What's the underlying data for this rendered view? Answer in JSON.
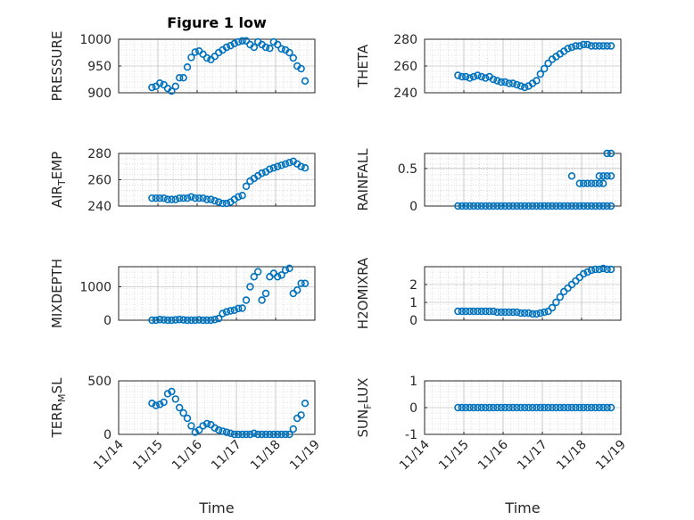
{
  "figure": {
    "title": "Figure 1 low",
    "xlabel": "Time"
  },
  "chart_data": [
    {
      "type": "scatter",
      "title": "Figure 1 low",
      "ylabel": "PRESSURE",
      "ylim": [
        900,
        1000
      ],
      "yticks": [
        "900",
        "950",
        "1000"
      ],
      "ytick_values": [
        900,
        950,
        1000
      ],
      "xlim": [
        14,
        19
      ],
      "xticks": [
        "11/14",
        "11/15",
        "11/16",
        "11/17",
        "11/18",
        "11/19"
      ],
      "show_xticklabels": false,
      "series": [
        {
          "x": [
            14.85,
            14.95,
            15.05,
            15.15,
            15.25,
            15.35,
            15.45,
            15.55,
            15.65,
            15.75,
            15.85,
            15.95,
            16.05,
            16.15,
            16.25,
            16.35,
            16.45,
            16.55,
            16.65,
            16.75,
            16.85,
            16.95,
            17.05,
            17.15,
            17.25,
            17.35,
            17.45,
            17.55,
            17.65,
            17.75,
            17.85,
            17.95,
            18.05,
            18.15,
            18.25,
            18.35,
            18.45,
            18.55,
            18.65,
            18.75
          ],
          "y": [
            910,
            912,
            918,
            915,
            908,
            903,
            912,
            928,
            928,
            948,
            966,
            976,
            978,
            972,
            965,
            962,
            968,
            975,
            980,
            985,
            988,
            992,
            995,
            997,
            997,
            990,
            985,
            995,
            990,
            985,
            983,
            995,
            990,
            982,
            980,
            975,
            965,
            950,
            945,
            922
          ]
        }
      ]
    },
    {
      "type": "scatter",
      "title": "",
      "ylabel": "THETA",
      "ylim": [
        240,
        280
      ],
      "yticks": [
        "240",
        "260",
        "280"
      ],
      "ytick_values": [
        240,
        260,
        280
      ],
      "xlim": [
        14,
        19
      ],
      "xticks": [
        "11/14",
        "11/15",
        "11/16",
        "11/17",
        "11/18",
        "11/19"
      ],
      "show_xticklabels": false,
      "series": [
        {
          "x": [
            14.85,
            14.95,
            15.05,
            15.15,
            15.25,
            15.35,
            15.45,
            15.55,
            15.65,
            15.75,
            15.85,
            15.95,
            16.05,
            16.15,
            16.25,
            16.35,
            16.45,
            16.55,
            16.65,
            16.75,
            16.85,
            16.95,
            17.05,
            17.15,
            17.25,
            17.35,
            17.45,
            17.55,
            17.65,
            17.75,
            17.85,
            17.95,
            18.05,
            18.15,
            18.25,
            18.35,
            18.45,
            18.55,
            18.65,
            18.75
          ],
          "y": [
            253,
            252,
            252,
            251,
            252,
            253,
            252,
            251,
            252,
            250,
            249,
            248,
            248,
            247,
            247,
            246,
            245,
            244,
            245,
            247,
            249,
            254,
            258,
            262,
            265,
            267,
            269,
            271,
            273,
            274,
            275,
            275,
            276,
            276,
            275,
            275,
            275,
            275,
            275,
            275
          ]
        }
      ]
    },
    {
      "type": "scatter",
      "title": "",
      "ylabel": "AIR_TEMP",
      "ylim": [
        240,
        280
      ],
      "yticks": [
        "240",
        "260",
        "280"
      ],
      "ytick_values": [
        240,
        260,
        280
      ],
      "xlim": [
        14,
        19
      ],
      "xticks": [
        "11/14",
        "11/15",
        "11/16",
        "11/17",
        "11/18",
        "11/19"
      ],
      "show_xticklabels": false,
      "series": [
        {
          "x": [
            14.85,
            14.95,
            15.05,
            15.15,
            15.25,
            15.35,
            15.45,
            15.55,
            15.65,
            15.75,
            15.85,
            15.95,
            16.05,
            16.15,
            16.25,
            16.35,
            16.45,
            16.55,
            16.65,
            16.75,
            16.85,
            16.95,
            17.05,
            17.15,
            17.25,
            17.35,
            17.45,
            17.55,
            17.65,
            17.75,
            17.85,
            17.95,
            18.05,
            18.15,
            18.25,
            18.35,
            18.45,
            18.55,
            18.65,
            18.75
          ],
          "y": [
            246,
            246,
            246,
            246,
            245,
            245,
            245,
            246,
            246,
            246,
            247,
            246,
            246,
            246,
            245,
            245,
            244,
            243,
            242,
            242,
            243,
            245,
            247,
            248,
            255,
            259,
            261,
            263,
            265,
            266,
            268,
            269,
            270,
            271,
            272,
            273,
            274,
            272,
            270,
            269
          ]
        }
      ]
    },
    {
      "type": "scatter",
      "title": "",
      "ylabel": "RAINFALL",
      "ylim": [
        0,
        0.7
      ],
      "yticks": [
        "0",
        "0.5"
      ],
      "ytick_values": [
        0,
        0.5
      ],
      "xlim": [
        14,
        19
      ],
      "xticks": [
        "11/14",
        "11/15",
        "11/16",
        "11/17",
        "11/18",
        "11/19"
      ],
      "show_xticklabels": false,
      "series": [
        {
          "x": [
            14.85,
            14.95,
            15.05,
            15.15,
            15.25,
            15.35,
            15.45,
            15.55,
            15.65,
            15.75,
            15.85,
            15.95,
            16.05,
            16.15,
            16.25,
            16.35,
            16.45,
            16.55,
            16.65,
            16.75,
            16.85,
            16.95,
            17.05,
            17.15,
            17.25,
            17.35,
            17.45,
            17.55,
            17.65,
            17.75,
            17.85,
            17.95,
            18.05,
            18.15,
            18.25,
            18.35,
            18.45,
            18.55,
            18.65,
            18.75,
            17.75,
            17.95,
            18.05,
            18.15,
            18.25,
            18.35,
            18.45,
            18.55,
            18.65,
            18.75,
            18.65,
            18.75,
            18.45,
            18.55
          ],
          "y": [
            0,
            0,
            0,
            0,
            0,
            0,
            0,
            0,
            0,
            0,
            0,
            0,
            0,
            0,
            0,
            0,
            0,
            0,
            0,
            0,
            0,
            0,
            0,
            0,
            0,
            0,
            0,
            0,
            0,
            0,
            0,
            0,
            0,
            0,
            0,
            0,
            0,
            0,
            0,
            0,
            0.4,
            0.3,
            0.3,
            0.3,
            0.3,
            0.3,
            0.4,
            0.4,
            0.4,
            0.4,
            0.7,
            0.7,
            0.3,
            0.3
          ]
        }
      ]
    },
    {
      "type": "scatter",
      "title": "",
      "ylabel": "MIXDEPTH",
      "ylim": [
        0,
        1600
      ],
      "yticks": [
        "0",
        "1000"
      ],
      "ytick_values": [
        0,
        1000
      ],
      "xlim": [
        14,
        19
      ],
      "xticks": [
        "11/14",
        "11/15",
        "11/16",
        "11/17",
        "11/18",
        "11/19"
      ],
      "show_xticklabels": false,
      "series": [
        {
          "x": [
            14.85,
            14.95,
            15.05,
            15.15,
            15.25,
            15.35,
            15.45,
            15.55,
            15.65,
            15.75,
            15.85,
            15.95,
            16.05,
            16.15,
            16.25,
            16.35,
            16.45,
            16.55,
            16.65,
            16.75,
            16.85,
            16.95,
            17.05,
            17.15,
            17.25,
            17.35,
            17.45,
            17.55,
            17.65,
            17.75,
            17.85,
            17.95,
            18.05,
            18.15,
            18.25,
            18.35,
            18.45,
            18.55,
            18.65,
            18.75
          ],
          "y": [
            0,
            0,
            20,
            10,
            0,
            0,
            10,
            20,
            10,
            0,
            0,
            0,
            10,
            0,
            0,
            0,
            20,
            50,
            200,
            250,
            280,
            300,
            350,
            360,
            600,
            1000,
            1300,
            1450,
            600,
            800,
            1300,
            1400,
            1300,
            1350,
            1500,
            1550,
            800,
            900,
            1100,
            1100
          ]
        }
      ]
    },
    {
      "type": "scatter",
      "title": "",
      "ylabel": "H2OMIXRA",
      "ylim": [
        0,
        3
      ],
      "yticks": [
        "0",
        "1",
        "2"
      ],
      "ytick_values": [
        0,
        1,
        2
      ],
      "xlim": [
        14,
        19
      ],
      "xticks": [
        "11/14",
        "11/15",
        "11/16",
        "11/17",
        "11/18",
        "11/19"
      ],
      "show_xticklabels": false,
      "series": [
        {
          "x": [
            14.85,
            14.95,
            15.05,
            15.15,
            15.25,
            15.35,
            15.45,
            15.55,
            15.65,
            15.75,
            15.85,
            15.95,
            16.05,
            16.15,
            16.25,
            16.35,
            16.45,
            16.55,
            16.65,
            16.75,
            16.85,
            16.95,
            17.05,
            17.15,
            17.25,
            17.35,
            17.45,
            17.55,
            17.65,
            17.75,
            17.85,
            17.95,
            18.05,
            18.15,
            18.25,
            18.35,
            18.45,
            18.55,
            18.65,
            18.75
          ],
          "y": [
            0.5,
            0.5,
            0.5,
            0.5,
            0.5,
            0.5,
            0.5,
            0.5,
            0.5,
            0.5,
            0.45,
            0.45,
            0.45,
            0.45,
            0.45,
            0.45,
            0.4,
            0.4,
            0.4,
            0.35,
            0.35,
            0.4,
            0.45,
            0.5,
            0.7,
            1.0,
            1.3,
            1.6,
            1.8,
            2.0,
            2.2,
            2.4,
            2.6,
            2.7,
            2.8,
            2.85,
            2.85,
            2.9,
            2.85,
            2.85
          ]
        }
      ]
    },
    {
      "type": "scatter",
      "title": "",
      "ylabel": "TERR_MSL",
      "ylim": [
        0,
        500
      ],
      "yticks": [
        "0",
        "500"
      ],
      "ytick_values": [
        0,
        500
      ],
      "xlim": [
        14,
        19
      ],
      "xticks": [
        "11/14",
        "11/15",
        "11/16",
        "11/17",
        "11/18",
        "11/19"
      ],
      "show_xticklabels": true,
      "series": [
        {
          "x": [
            14.85,
            14.95,
            15.05,
            15.15,
            15.25,
            15.35,
            15.45,
            15.55,
            15.65,
            15.75,
            15.85,
            15.95,
            16.05,
            16.15,
            16.25,
            16.35,
            16.45,
            16.55,
            16.65,
            16.75,
            16.85,
            16.95,
            17.05,
            17.15,
            17.25,
            17.35,
            17.45,
            17.55,
            17.65,
            17.75,
            17.85,
            17.95,
            18.05,
            18.15,
            18.25,
            18.35,
            18.45,
            18.55,
            18.65,
            18.75
          ],
          "y": [
            290,
            270,
            280,
            300,
            380,
            400,
            330,
            250,
            200,
            150,
            80,
            20,
            40,
            80,
            100,
            90,
            60,
            40,
            30,
            20,
            10,
            0,
            0,
            0,
            0,
            0,
            10,
            0,
            0,
            0,
            0,
            0,
            0,
            0,
            0,
            0,
            50,
            150,
            180,
            290
          ]
        }
      ]
    },
    {
      "type": "scatter",
      "title": "",
      "ylabel": "SUN_FLUX",
      "ylim": [
        -1,
        1
      ],
      "yticks": [
        "-1",
        "0",
        "1"
      ],
      "ytick_values": [
        -1,
        0,
        1
      ],
      "xlim": [
        14,
        19
      ],
      "xticks": [
        "11/14",
        "11/15",
        "11/16",
        "11/17",
        "11/18",
        "11/19"
      ],
      "show_xticklabels": true,
      "series": [
        {
          "x": [
            14.85,
            14.95,
            15.05,
            15.15,
            15.25,
            15.35,
            15.45,
            15.55,
            15.65,
            15.75,
            15.85,
            15.95,
            16.05,
            16.15,
            16.25,
            16.35,
            16.45,
            16.55,
            16.65,
            16.75,
            16.85,
            16.95,
            17.05,
            17.15,
            17.25,
            17.35,
            17.45,
            17.55,
            17.65,
            17.75,
            17.85,
            17.95,
            18.05,
            18.15,
            18.25,
            18.35,
            18.45,
            18.55,
            18.65,
            18.75
          ],
          "y": [
            0,
            0,
            0,
            0,
            0,
            0,
            0,
            0,
            0,
            0,
            0,
            0,
            0,
            0,
            0,
            0,
            0,
            0,
            0,
            0,
            0,
            0,
            0,
            0,
            0,
            0,
            0,
            0,
            0,
            0,
            0,
            0,
            0,
            0,
            0,
            0,
            0,
            0,
            0,
            0
          ]
        }
      ]
    }
  ]
}
